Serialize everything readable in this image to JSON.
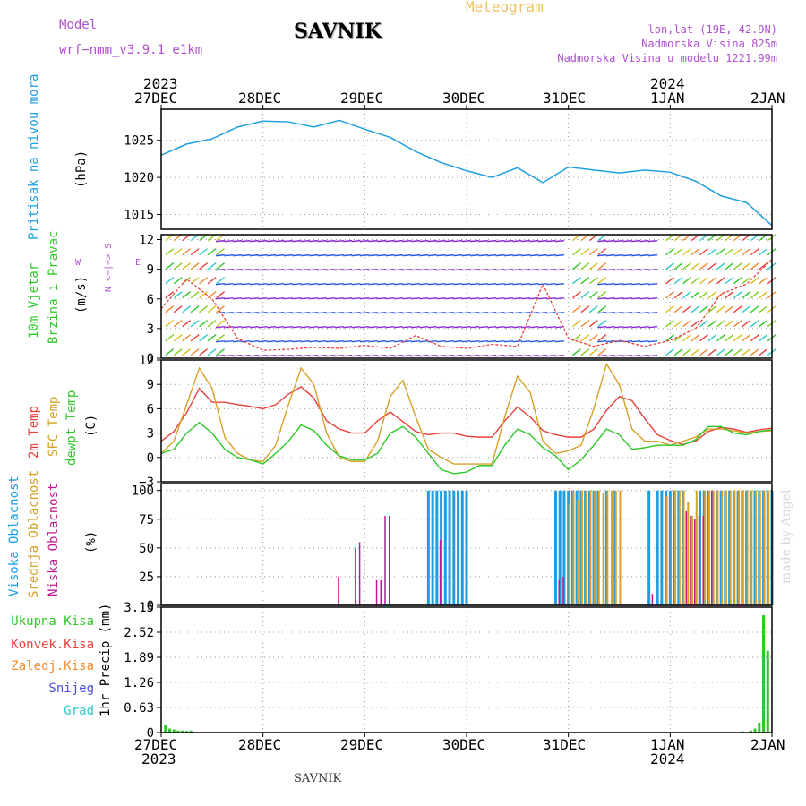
{
  "header": {
    "model_label": "Model",
    "model_name": "wrf−nmm_v3.9.1  e1km",
    "station": "SAVNIK",
    "meteogram": "Meteogram",
    "lonlat": "lon,lat (19E, 42.9N)",
    "alt": "Nadmorska Visina 825m",
    "alt_model": "Nadmorska Visina u modelu 1221.99m"
  },
  "footer": {
    "station": "SAVNIK"
  },
  "watermark": "made by Angel",
  "colors": {
    "pressure": "#1e9fe0",
    "temp2m": "#e8413a",
    "sfc": "#d8a028",
    "dew": "#2ec828",
    "high_cloud": "#1e9fe0",
    "mid_cloud": "#d8a028",
    "low_cloud": "#c01890",
    "total_precip": "#2ec828",
    "conv_precip": "#e8413a",
    "frozen_precip": "#f08a30",
    "snow": "#5050e0",
    "graupel": "#30c8c8",
    "purple_label": "#b050d0",
    "title_orange": "#f0c060"
  },
  "time_axis": {
    "top_years": [
      "2023",
      "2024"
    ],
    "bottom_years": [
      "2023",
      "2024"
    ],
    "days": [
      "27DEC",
      "28DEC",
      "29DEC",
      "30DEC",
      "31DEC",
      "1JAN",
      "2JAN"
    ]
  },
  "panels": {
    "pressure": {
      "label": "Pritisak na nivou mora",
      "unit": "(hPa)",
      "ticks": [
        "1015",
        "1020",
        "1025"
      ]
    },
    "wind": {
      "label1": "10m Vjetar",
      "label2": "Brzina i Pravac",
      "unit": "(m/s)",
      "ticks": [
        "0",
        "3",
        "6",
        "9",
        "12"
      ],
      "compass_ns": "N <−|−> S",
      "compass_w": "W",
      "compass_e": "E"
    },
    "temp": {
      "label1": "2m Temp",
      "label2": "SFC Temp",
      "label3": "dewpt Temp",
      "unit": "(C)",
      "ticks": [
        "−3",
        "0",
        "3",
        "6",
        "9",
        "12"
      ]
    },
    "cloud": {
      "label1": "Visoka Oblacnost",
      "label2": "Srednja Oblacnost",
      "label3": "Niska Oblacnost",
      "unit": "(%)",
      "ticks": [
        "0",
        "25",
        "50",
        "75",
        "100"
      ]
    },
    "precip": {
      "labels": [
        "Ukupna Kisa",
        "Konvek.Kisa",
        "Zaledj.Kisa",
        "Snijeg",
        "Grad"
      ],
      "unit": "1hr Precip (mm)",
      "ticks": [
        "0",
        "0.63",
        "1.26",
        "1.89",
        "2.52",
        "3.15"
      ]
    }
  },
  "chart_data": [
    {
      "type": "line",
      "title": "Pritisak na nivou mora",
      "ylabel": "(hPa)",
      "ylim": [
        1013,
        1029.2
      ],
      "x": [
        0,
        6,
        12,
        18,
        24,
        30,
        36,
        42,
        48,
        54,
        60,
        66,
        72,
        78,
        84,
        90,
        96,
        102,
        108,
        114,
        120,
        126,
        132,
        138,
        144
      ],
      "series": [
        {
          "values": [
            1023.0,
            1024.5,
            1025.2,
            1026.8,
            1027.6,
            1027.5,
            1026.8,
            1027.7,
            1026.5,
            1025.4,
            1023.5,
            1022.0,
            1020.9,
            1020.0,
            1021.3,
            1019.3,
            1021.4,
            1021.0,
            1020.6,
            1021.0,
            1020.7,
            1019.5,
            1017.5,
            1016.6,
            1013.5
          ]
        }
      ]
    },
    {
      "type": "line",
      "title": "10m Vjetar Brzina i Pravac",
      "ylabel": "(m/s)",
      "ylim": [
        0,
        12.5
      ],
      "x": [
        0,
        6,
        12,
        18,
        24,
        30,
        36,
        42,
        48,
        54,
        60,
        66,
        72,
        78,
        84,
        90,
        96,
        102,
        108,
        114,
        120,
        126,
        132,
        138,
        144
      ],
      "series": [
        {
          "values": [
            5,
            8,
            6,
            2,
            0.8,
            0.9,
            1.1,
            1.0,
            1.3,
            1.0,
            2.3,
            1.2,
            1.0,
            1.4,
            1.2,
            7.5,
            2.0,
            1.2,
            1.8,
            1.2,
            1.8,
            3.0,
            6.5,
            7.5,
            10.0
          ]
        }
      ]
    },
    {
      "type": "line",
      "title": "Temp",
      "ylabel": "(C)",
      "ylim": [
        -3,
        12
      ],
      "x": [
        0,
        3,
        6,
        9,
        12,
        15,
        18,
        21,
        24,
        27,
        30,
        33,
        36,
        39,
        42,
        45,
        48,
        51,
        54,
        57,
        60,
        63,
        66,
        69,
        72,
        75,
        78,
        81,
        84,
        87,
        90,
        93,
        96,
        99,
        102,
        105,
        108,
        111,
        114,
        117,
        120,
        123,
        126,
        129,
        132,
        135,
        138,
        141,
        144
      ],
      "series": [
        {
          "name": "2m Temp",
          "values": [
            2.0,
            3.2,
            5.5,
            8.5,
            6.8,
            6.8,
            6.5,
            6.3,
            6.0,
            6.5,
            7.8,
            8.7,
            7.3,
            4.5,
            3.5,
            3.0,
            3.0,
            4.5,
            5.6,
            4.4,
            3.2,
            2.8,
            3.0,
            3.0,
            2.6,
            2.5,
            2.5,
            4.5,
            6.2,
            5.0,
            3.3,
            2.8,
            2.5,
            2.5,
            3.5,
            5.8,
            7.5,
            7.0,
            4.8,
            2.8,
            2.1,
            1.6,
            2.0,
            3.2,
            3.7,
            3.5,
            3.1,
            3.4,
            3.6
          ]
        },
        {
          "name": "SFC Temp",
          "values": [
            0.5,
            2.0,
            6.5,
            11.0,
            8.5,
            2.5,
            0.5,
            -0.3,
            -0.5,
            1.5,
            6.5,
            11.0,
            9.0,
            3.0,
            0.0,
            -0.5,
            -0.5,
            2.0,
            7.5,
            9.5,
            5.0,
            1.0,
            0.0,
            -0.8,
            -0.8,
            -0.8,
            -0.8,
            5.0,
            10.0,
            8.0,
            2.0,
            0.5,
            0.8,
            1.5,
            6.0,
            11.5,
            9.0,
            3.5,
            2.0,
            2.0,
            1.5,
            2.0,
            2.5,
            3.5,
            3.5,
            3.3,
            3.0,
            3.2,
            3.3
          ]
        },
        {
          "name": "dewpt Temp",
          "values": [
            0.5,
            1.0,
            3.0,
            4.3,
            3.0,
            1.0,
            0.0,
            -0.3,
            -0.8,
            0.5,
            2.0,
            4.0,
            3.3,
            1.5,
            0.2,
            -0.3,
            -0.3,
            0.5,
            3.0,
            3.8,
            2.5,
            0.5,
            -1.5,
            -2.0,
            -1.8,
            -1.0,
            -1.0,
            1.5,
            3.5,
            2.8,
            1.2,
            0.2,
            -1.5,
            -0.3,
            1.5,
            3.5,
            2.8,
            1.0,
            1.2,
            1.5,
            1.5,
            1.5,
            2.2,
            3.8,
            3.8,
            3.0,
            2.8,
            3.2,
            3.4
          ]
        }
      ]
    },
    {
      "type": "bar",
      "title": "Oblacnost",
      "ylabel": "(%)",
      "ylim": [
        0,
        100
      ],
      "series": [
        {
          "name": "Visoka Oblacnost",
          "x": [
            63,
            64,
            65,
            66,
            67,
            68,
            69,
            70,
            71,
            72,
            93,
            94,
            95,
            96,
            97,
            98,
            99,
            100,
            101,
            102,
            103,
            105,
            107,
            115,
            117,
            118,
            119,
            120,
            121,
            122,
            123,
            127,
            128,
            129,
            130,
            131,
            132,
            133,
            134,
            135,
            136,
            137,
            138,
            139,
            140,
            141,
            142,
            143,
            144
          ],
          "values": [
            100,
            100,
            100,
            100,
            100,
            100,
            100,
            100,
            100,
            100,
            100,
            100,
            100,
            100,
            100,
            100,
            100,
            100,
            100,
            100,
            100,
            100,
            100,
            100,
            100,
            100,
            100,
            100,
            100,
            100,
            100,
            100,
            100,
            100,
            100,
            100,
            100,
            100,
            100,
            100,
            100,
            100,
            100,
            100,
            100,
            100,
            100,
            100,
            100
          ]
        },
        {
          "name": "Srednja Oblacnost",
          "x": [
            96,
            97,
            98,
            99,
            100,
            101,
            102,
            103,
            104,
            105,
            106,
            107,
            108,
            119,
            121,
            122,
            123,
            124,
            125,
            126,
            128,
            129,
            130,
            131,
            132,
            133,
            134,
            135,
            136,
            137,
            138,
            139,
            140,
            141,
            142,
            143
          ],
          "values": [
            88,
            100,
            92,
            100,
            100,
            100,
            100,
            100,
            98,
            100,
            100,
            100,
            100,
            95,
            100,
            100,
            100,
            90,
            78,
            100,
            100,
            100,
            100,
            100,
            100,
            100,
            100,
            100,
            100,
            100,
            100,
            100,
            100,
            100,
            100,
            100
          ]
        },
        {
          "name": "Niska Oblacnost",
          "x": [
            42,
            46,
            47,
            48,
            51,
            52,
            53,
            54,
            66,
            94,
            95,
            116,
            124,
            125,
            126,
            127,
            128,
            130
          ],
          "values": [
            25,
            50,
            55,
            0,
            22,
            22,
            78,
            78,
            57,
            22,
            25,
            10,
            82,
            78,
            75,
            78,
            78,
            100
          ]
        }
      ]
    },
    {
      "type": "bar",
      "title": "1hr Precip",
      "ylabel": "1hr Precip (mm)",
      "ylim": [
        0,
        3.15
      ],
      "series": [
        {
          "name": "Ukupna Kisa",
          "x": [
            1,
            2,
            3,
            4,
            5,
            6,
            7,
            137,
            139,
            140,
            141,
            142,
            143
          ],
          "values": [
            0.2,
            0.1,
            0.08,
            0.05,
            0.05,
            0.04,
            0.05,
            0.03,
            0.05,
            0.1,
            0.25,
            2.95,
            2.05
          ]
        }
      ]
    }
  ]
}
